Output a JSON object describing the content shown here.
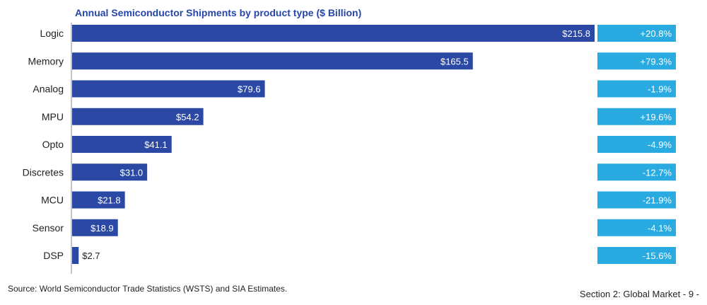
{
  "chart_data": {
    "type": "bar",
    "orientation": "horizontal",
    "title": "Annual Semiconductor Shipments by product type ($ Billion)",
    "categories": [
      "Logic",
      "Memory",
      "Analog",
      "MPU",
      "Opto",
      "Discretes",
      "MCU",
      "Sensor",
      "DSP"
    ],
    "values": [
      215.8,
      165.5,
      79.6,
      54.2,
      41.1,
      31.0,
      21.8,
      18.9,
      2.7
    ],
    "value_labels": [
      "$215.8",
      "$165.5",
      "$79.6",
      "$54.2",
      "$41.1",
      "$31.0",
      "$21.8",
      "$18.9",
      "$2.7"
    ],
    "growth_labels": [
      "+20.8%",
      "+79.3%",
      "-1.9%",
      "+19.6%",
      "-4.9%",
      "-12.7%",
      "-21.9%",
      "-4.1%",
      "-15.6%"
    ],
    "xlim": [
      0,
      215.8
    ],
    "xlabel": "",
    "ylabel": "",
    "grid": false,
    "legend": "none",
    "bar_color": "#2a48a4",
    "growth_box_color": "#29abe2"
  },
  "footer": {
    "source": "Source: World Semiconductor Trade Statistics (WSTS) and SIA Estimates.",
    "page": "Section 2: Global Market - 9 -"
  },
  "colors": {
    "title": "#2546a8",
    "axis": "#8a8a8a",
    "text": "#222222"
  }
}
